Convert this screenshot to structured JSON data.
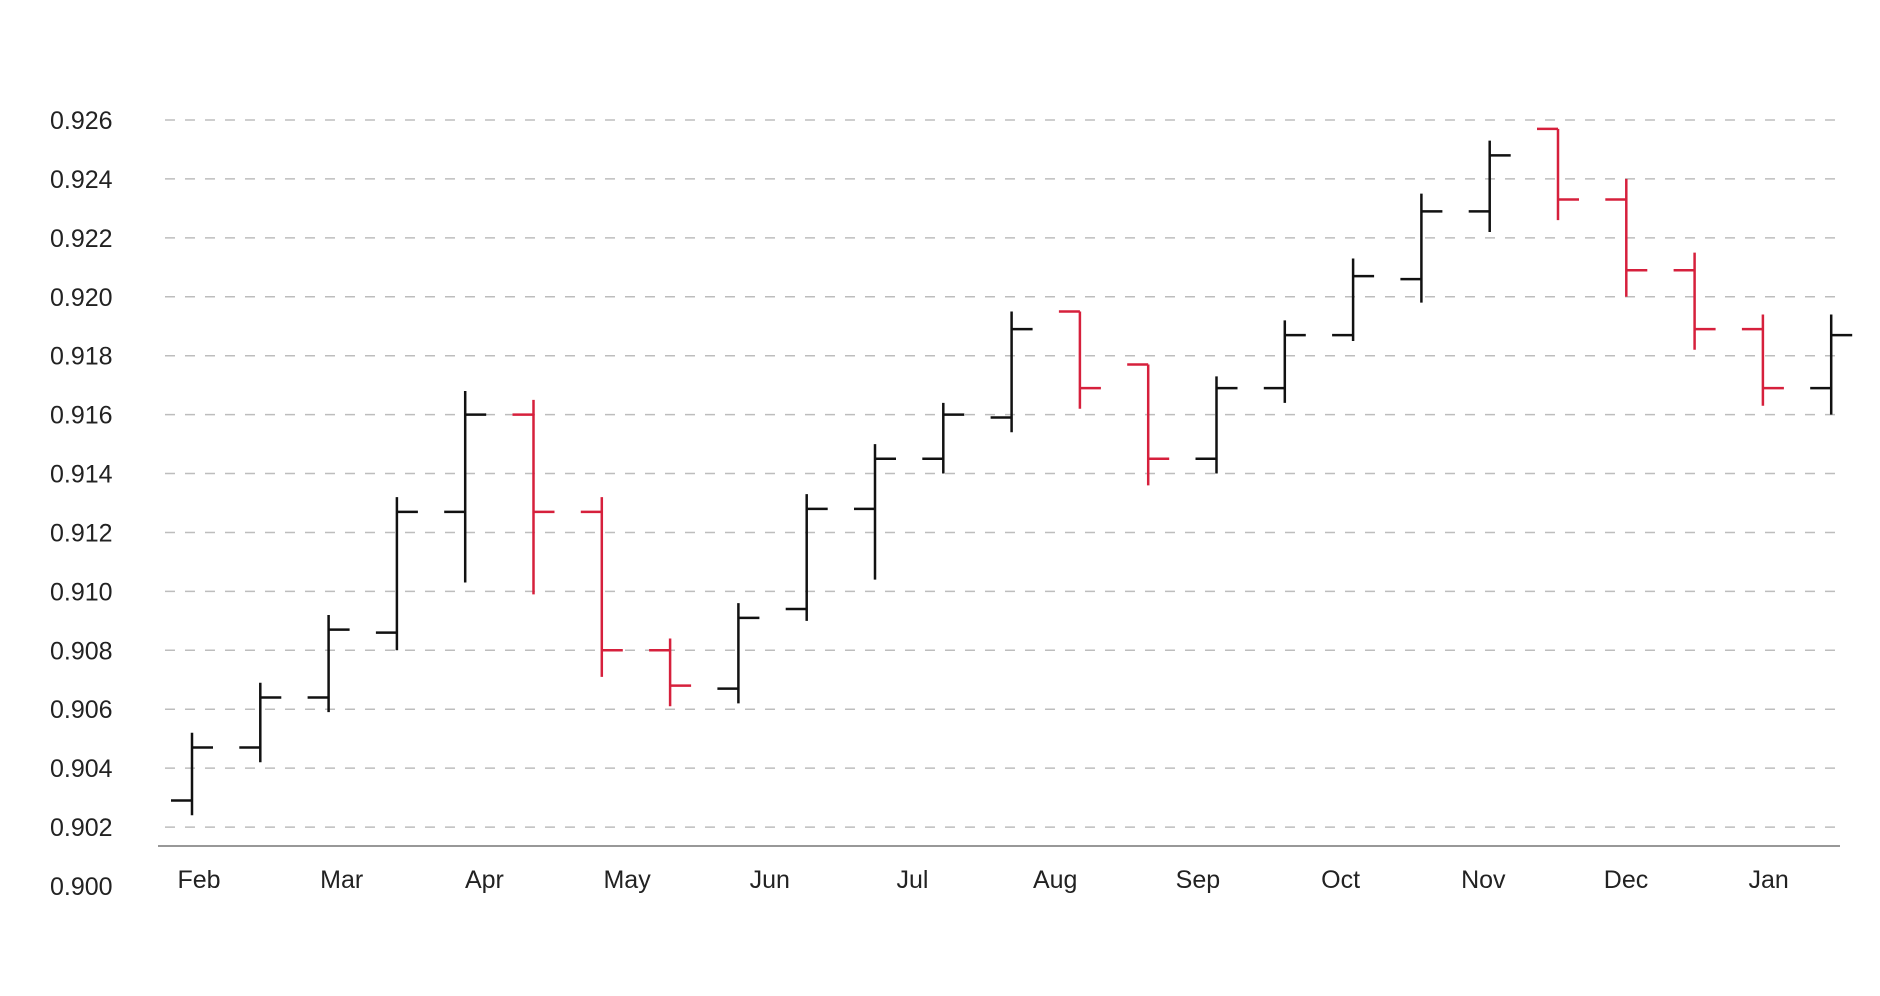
{
  "chart_data": {
    "type": "ohlc",
    "title": "",
    "xlabel": "",
    "ylabel": "",
    "ylim": [
      0.9,
      0.9265
    ],
    "grid": true,
    "y_ticks": [
      "0.900",
      "0.902",
      "0.904",
      "0.906",
      "0.908",
      "0.910",
      "0.912",
      "0.914",
      "0.916",
      "0.918",
      "0.920",
      "0.922",
      "0.924",
      "0.926"
    ],
    "x_ticks": [
      "Feb",
      "Mar",
      "Apr",
      "May",
      "Jun",
      "Jul",
      "Aug",
      "Sep",
      "Oct",
      "Nov",
      "Dec",
      "Jan"
    ],
    "colors": {
      "up": "#111111",
      "down": "#d6203c"
    },
    "bars": [
      {
        "o": 0.9029,
        "h": 0.9052,
        "l": 0.9024,
        "c": 0.9047
      },
      {
        "o": 0.9047,
        "h": 0.9069,
        "l": 0.9042,
        "c": 0.9064
      },
      {
        "o": 0.9064,
        "h": 0.9092,
        "l": 0.9059,
        "c": 0.9087
      },
      {
        "o": 0.9086,
        "h": 0.9132,
        "l": 0.908,
        "c": 0.9127
      },
      {
        "o": 0.9127,
        "h": 0.9168,
        "l": 0.9103,
        "c": 0.916
      },
      {
        "o": 0.916,
        "h": 0.9165,
        "l": 0.9099,
        "c": 0.9127
      },
      {
        "o": 0.9127,
        "h": 0.9132,
        "l": 0.9071,
        "c": 0.908
      },
      {
        "o": 0.908,
        "h": 0.9084,
        "l": 0.9061,
        "c": 0.9068
      },
      {
        "o": 0.9067,
        "h": 0.9096,
        "l": 0.9062,
        "c": 0.9091
      },
      {
        "o": 0.9094,
        "h": 0.9133,
        "l": 0.909,
        "c": 0.9128
      },
      {
        "o": 0.9128,
        "h": 0.915,
        "l": 0.9104,
        "c": 0.9145
      },
      {
        "o": 0.9145,
        "h": 0.9164,
        "l": 0.914,
        "c": 0.916
      },
      {
        "o": 0.9159,
        "h": 0.9195,
        "l": 0.9154,
        "c": 0.9189
      },
      {
        "o": 0.9195,
        "h": 0.9195,
        "l": 0.9162,
        "c": 0.9169
      },
      {
        "o": 0.9177,
        "h": 0.9177,
        "l": 0.9136,
        "c": 0.9145
      },
      {
        "o": 0.9145,
        "h": 0.9173,
        "l": 0.914,
        "c": 0.9169
      },
      {
        "o": 0.9169,
        "h": 0.9192,
        "l": 0.9164,
        "c": 0.9187
      },
      {
        "o": 0.9187,
        "h": 0.9213,
        "l": 0.9185,
        "c": 0.9207
      },
      {
        "o": 0.9206,
        "h": 0.9235,
        "l": 0.9198,
        "c": 0.9229
      },
      {
        "o": 0.9229,
        "h": 0.9253,
        "l": 0.9222,
        "c": 0.9248
      },
      {
        "o": 0.9257,
        "h": 0.9257,
        "l": 0.9226,
        "c": 0.9233
      },
      {
        "o": 0.9233,
        "h": 0.924,
        "l": 0.92,
        "c": 0.9209
      },
      {
        "o": 0.9209,
        "h": 0.9215,
        "l": 0.9182,
        "c": 0.9189
      },
      {
        "o": 0.9189,
        "h": 0.9194,
        "l": 0.9163,
        "c": 0.9169
      },
      {
        "o": 0.9169,
        "h": 0.9194,
        "l": 0.916,
        "c": 0.9187
      }
    ]
  }
}
